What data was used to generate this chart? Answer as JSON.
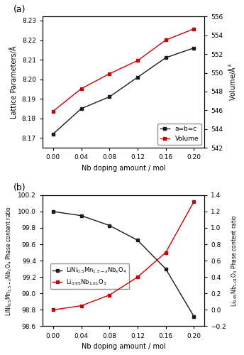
{
  "nb_doping": [
    0.0,
    0.04,
    0.08,
    0.12,
    0.16,
    0.2
  ],
  "lattice_a": [
    8.172,
    8.185,
    8.191,
    8.201,
    8.211,
    8.216
  ],
  "volume": [
    545.9,
    548.3,
    549.9,
    551.3,
    553.5,
    554.7
  ],
  "phase_spinel": [
    100.0,
    99.95,
    99.83,
    99.65,
    99.3,
    98.72
  ],
  "phase_impurity": [
    0.0,
    0.05,
    0.18,
    0.4,
    0.7,
    1.32
  ],
  "lattice_ylim": [
    8.165,
    8.232
  ],
  "lattice_yticks": [
    8.17,
    8.18,
    8.19,
    8.2,
    8.21,
    8.22,
    8.23
  ],
  "volume_ylim": [
    542,
    556
  ],
  "volume_yticks": [
    542,
    544,
    546,
    548,
    550,
    552,
    554,
    556
  ],
  "phase_spinel_ylim": [
    98.6,
    100.2
  ],
  "phase_spinel_yticks": [
    98.6,
    98.8,
    99.0,
    99.2,
    99.4,
    99.6,
    99.8,
    100.0,
    100.2
  ],
  "phase_impurity_ylim": [
    -0.2,
    1.4
  ],
  "phase_impurity_yticks": [
    -0.2,
    0.0,
    0.2,
    0.4,
    0.6,
    0.8,
    1.0,
    1.2,
    1.4
  ],
  "x_ticks": [
    0.0,
    0.04,
    0.08,
    0.12,
    0.16,
    0.2
  ],
  "xlabel": "Nb doping amount / mol",
  "label_lattice": "a=b=c",
  "label_volume": "Volume",
  "label_spinel": "LiNi$_{0.5}$Mn$_{1.5-x}$Nb$_x$O$_4$",
  "label_impurity": "Li$_{0.95}$Nb$_{1.01}$O$_3$",
  "ylabel_left_a": "Lattice Parameters/Å",
  "ylabel_right_a": "Volume/Å$^3$",
  "ylabel_left_b": "LiNi$_{0.5}$Mn$_{1.5-x}$Nb$_x$O$_4$ Phase content ratio",
  "ylabel_right_b": "Li$_{0.95}$Nb$_{1.01}$O$_3$ Phase content ratio",
  "color_black": "#1a1a1a",
  "color_red": "#cc0000",
  "bg_color": "#ffffff",
  "panel_a_label": "(a)",
  "panel_b_label": "(b)"
}
